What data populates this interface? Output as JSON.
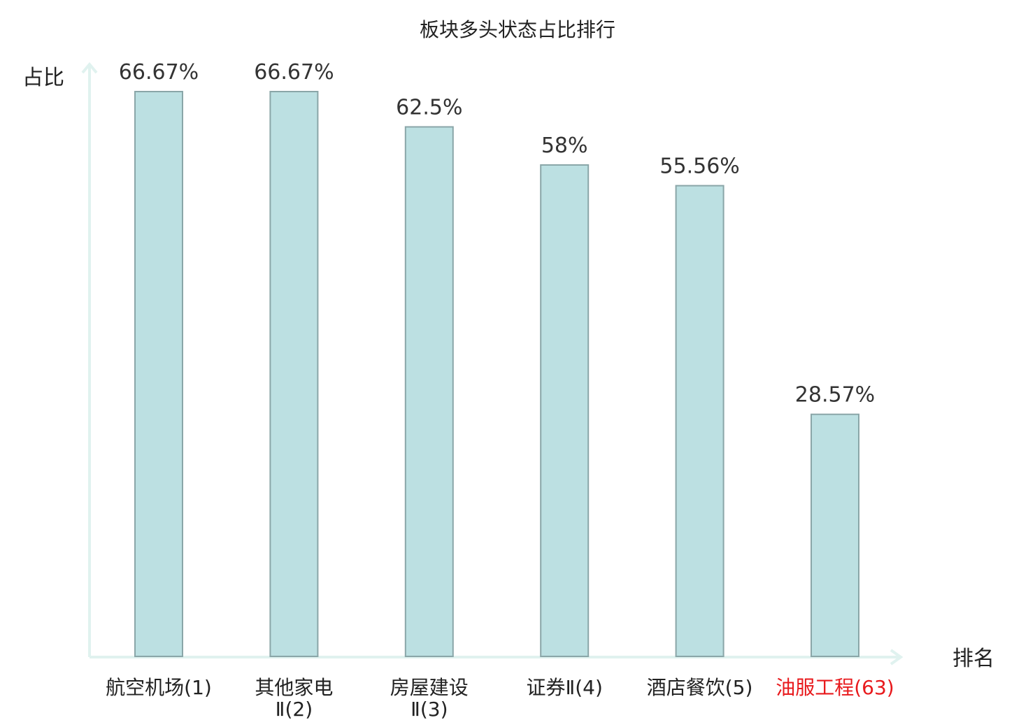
{
  "chart_data": {
    "type": "bar",
    "title": "板块多头状态占比排行",
    "ylabel": "占比",
    "xlabel": "排名",
    "ylim": [
      0,
      70
    ],
    "grid": false,
    "categories": [
      {
        "lines": [
          "航空机场(1)"
        ],
        "highlight": false
      },
      {
        "lines": [
          "其他家电",
          "Ⅱ(2)"
        ],
        "highlight": false
      },
      {
        "lines": [
          "房屋建设",
          "Ⅱ(3)"
        ],
        "highlight": false
      },
      {
        "lines": [
          "证券Ⅱ(4)"
        ],
        "highlight": false
      },
      {
        "lines": [
          "酒店餐饮(5)"
        ],
        "highlight": false
      },
      {
        "lines": [
          "油服工程(63)"
        ],
        "highlight": true
      }
    ],
    "values": [
      66.67,
      66.67,
      62.5,
      58,
      55.56,
      28.57
    ],
    "value_labels": [
      "66.67%",
      "66.67%",
      "62.5%",
      "58%",
      "55.56%",
      "28.57%"
    ],
    "colors": {
      "bar_fill": "#bce0e2",
      "bar_stroke": "#8aa6a8",
      "axis": "#e0f2ef",
      "text": "#222222",
      "highlight": "#e8191c"
    }
  }
}
